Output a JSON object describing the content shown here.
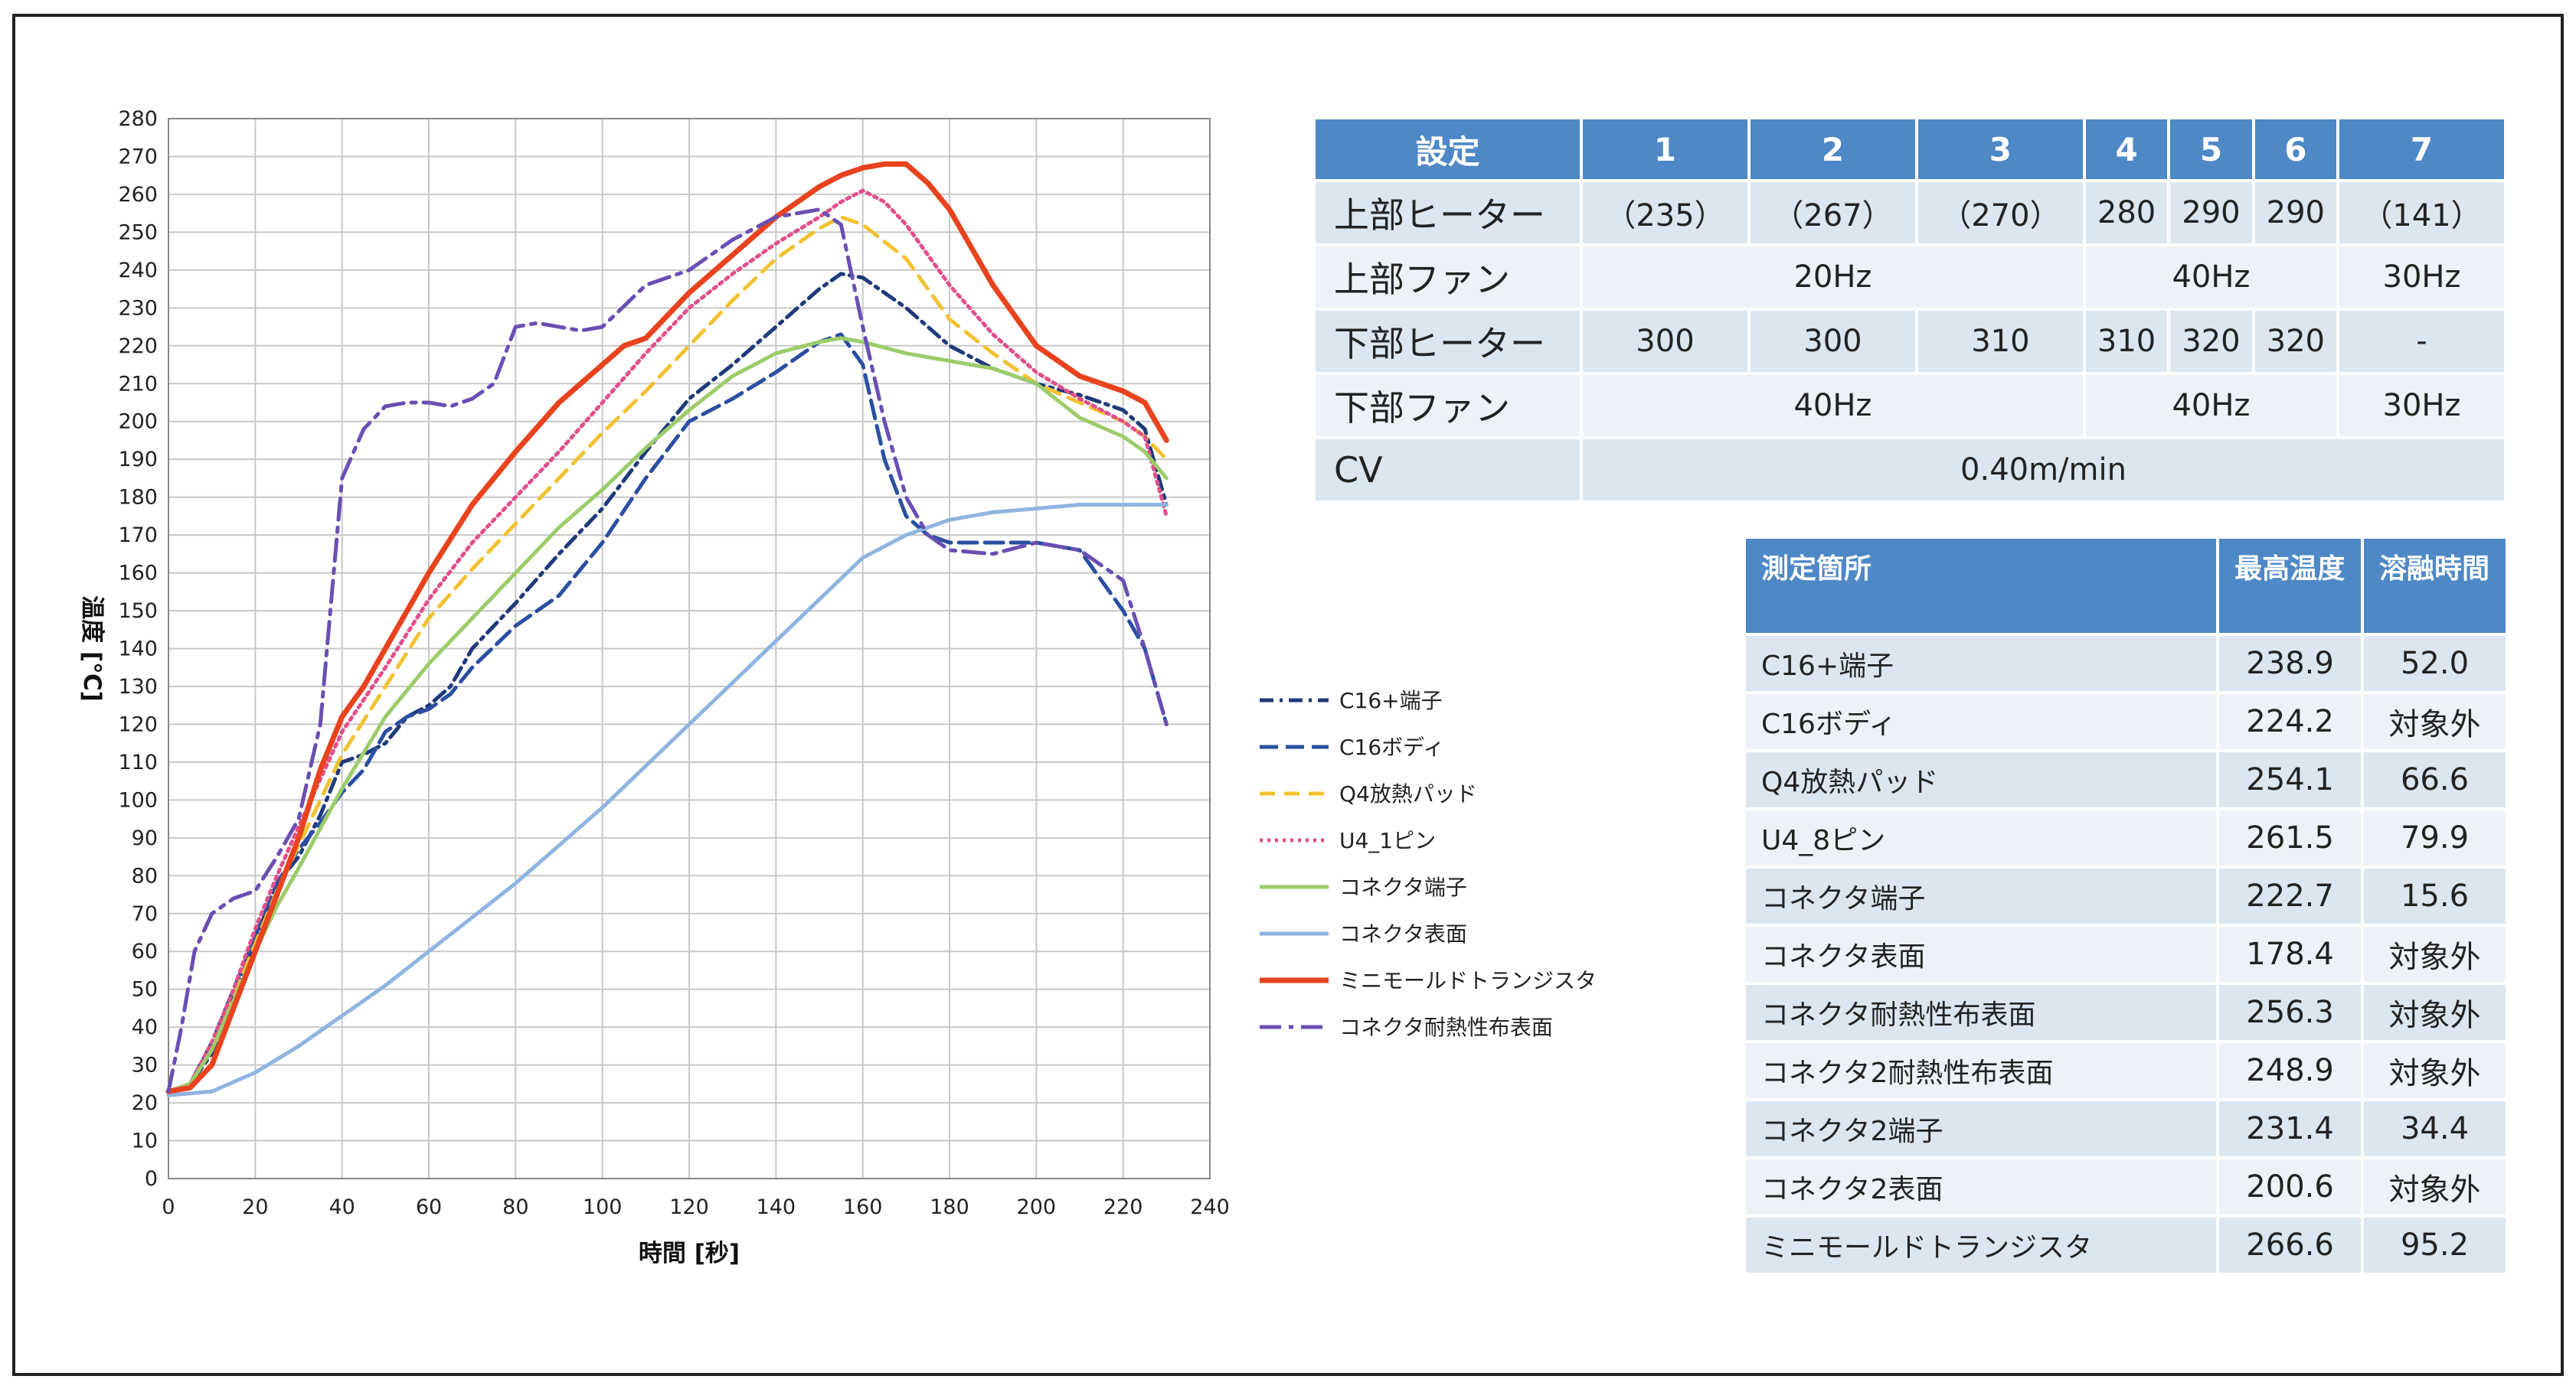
{
  "chart_data": {
    "type": "line",
    "xlabel": "時間 [秒]",
    "ylabel": "温度 [℃]",
    "xlim": [
      0,
      240
    ],
    "ylim": [
      0,
      280
    ],
    "xticks": [
      0,
      20,
      40,
      60,
      80,
      100,
      120,
      140,
      160,
      180,
      200,
      220,
      240
    ],
    "yticks": [
      0,
      10,
      20,
      30,
      40,
      50,
      60,
      70,
      80,
      90,
      100,
      110,
      120,
      130,
      140,
      150,
      160,
      170,
      180,
      190,
      200,
      210,
      220,
      230,
      240,
      250,
      260,
      270,
      280
    ],
    "grid": true,
    "legend_position": "right",
    "series": [
      {
        "name": "C16+端子",
        "color": "#1f3a7a",
        "dash": "18,8,4,8",
        "x": [
          0,
          5,
          10,
          15,
          20,
          25,
          30,
          35,
          40,
          45,
          50,
          55,
          60,
          65,
          70,
          80,
          90,
          100,
          110,
          120,
          130,
          140,
          150,
          155,
          160,
          170,
          180,
          190,
          200,
          210,
          220,
          225,
          230
        ],
        "y": [
          23,
          25,
          33,
          48,
          63,
          78,
          85,
          96,
          110,
          112,
          115,
          122,
          125,
          130,
          140,
          152,
          165,
          177,
          192,
          206,
          215,
          225,
          235,
          239,
          238,
          230,
          220,
          214,
          210,
          207,
          203,
          198,
          178
        ]
      },
      {
        "name": "C16ボディ",
        "color": "#2a4fa0",
        "dash": "24,10",
        "x": [
          0,
          5,
          10,
          15,
          20,
          25,
          30,
          35,
          40,
          45,
          50,
          55,
          60,
          65,
          70,
          80,
          90,
          100,
          110,
          120,
          130,
          140,
          150,
          155,
          160,
          165,
          170,
          175,
          180,
          190,
          200,
          210,
          220,
          225,
          230
        ],
        "y": [
          23,
          25,
          36,
          50,
          64,
          78,
          87,
          94,
          102,
          108,
          118,
          122,
          124,
          128,
          135,
          146,
          154,
          168,
          185,
          200,
          206,
          213,
          221,
          223,
          215,
          190,
          175,
          170,
          168,
          168,
          168,
          166,
          150,
          140,
          120
        ]
      },
      {
        "name": "Q4放熱パッド",
        "color": "#f2c232",
        "dash": "20,12",
        "x": [
          0,
          5,
          10,
          15,
          20,
          25,
          30,
          40,
          50,
          60,
          70,
          80,
          90,
          100,
          110,
          120,
          130,
          140,
          150,
          155,
          160,
          170,
          180,
          190,
          200,
          210,
          220,
          225,
          230
        ],
        "y": [
          23,
          25,
          34,
          48,
          62,
          76,
          88,
          112,
          130,
          148,
          161,
          173,
          185,
          197,
          208,
          220,
          232,
          243,
          251,
          254,
          252,
          243,
          227,
          218,
          210,
          205,
          200,
          196,
          190
        ]
      },
      {
        "name": "U4_1ピン",
        "color": "#e0508c",
        "dash": "4,6",
        "x": [
          0,
          5,
          10,
          15,
          20,
          25,
          30,
          40,
          50,
          60,
          70,
          80,
          90,
          100,
          110,
          120,
          130,
          140,
          150,
          155,
          160,
          165,
          170,
          180,
          190,
          200,
          210,
          220,
          225,
          230
        ],
        "y": [
          23,
          25,
          36,
          50,
          66,
          80,
          93,
          118,
          135,
          153,
          168,
          180,
          192,
          205,
          218,
          230,
          239,
          247,
          254,
          258,
          261,
          258,
          252,
          236,
          223,
          213,
          206,
          200,
          196,
          175
        ]
      },
      {
        "name": "コネクタ端子",
        "color": "#9ccc6a",
        "dash": "",
        "x": [
          0,
          5,
          10,
          15,
          20,
          25,
          30,
          40,
          50,
          60,
          70,
          80,
          90,
          100,
          110,
          120,
          130,
          140,
          150,
          155,
          160,
          170,
          180,
          190,
          200,
          210,
          220,
          225,
          230
        ],
        "y": [
          23,
          25,
          34,
          47,
          60,
          72,
          82,
          103,
          122,
          136,
          148,
          160,
          172,
          182,
          193,
          203,
          212,
          218,
          221,
          222,
          221,
          218,
          216,
          214,
          210,
          201,
          196,
          192,
          185
        ]
      },
      {
        "name": "コネクタ表面",
        "color": "#8fb4e0",
        "dash": "",
        "x": [
          0,
          10,
          20,
          30,
          40,
          50,
          60,
          70,
          80,
          90,
          100,
          110,
          120,
          130,
          140,
          150,
          160,
          170,
          180,
          190,
          200,
          210,
          220,
          230
        ],
        "y": [
          22,
          23,
          28,
          35,
          43,
          51,
          60,
          69,
          78,
          88,
          98,
          109,
          120,
          131,
          142,
          153,
          164,
          170,
          174,
          176,
          177,
          178,
          178,
          178
        ]
      },
      {
        "name": "ミニモールドトランジスタ",
        "color": "#e8431e",
        "dash": "",
        "x": [
          0,
          5,
          10,
          15,
          20,
          25,
          30,
          35,
          40,
          45,
          50,
          60,
          70,
          80,
          90,
          100,
          105,
          110,
          120,
          130,
          140,
          150,
          155,
          160,
          165,
          170,
          175,
          180,
          190,
          200,
          210,
          220,
          225,
          230
        ],
        "y": [
          23,
          24,
          30,
          45,
          60,
          75,
          90,
          108,
          122,
          130,
          140,
          160,
          178,
          192,
          205,
          215,
          220,
          222,
          234,
          244,
          254,
          262,
          265,
          267,
          268,
          268,
          263,
          256,
          236,
          220,
          212,
          208,
          205,
          195
        ]
      },
      {
        "name": "コネクタ耐熱性布表面",
        "color": "#6a4fb3",
        "dash": "28,10,6,10",
        "x": [
          0,
          3,
          6,
          10,
          15,
          20,
          25,
          30,
          35,
          40,
          45,
          50,
          55,
          60,
          65,
          70,
          75,
          80,
          85,
          90,
          95,
          100,
          110,
          120,
          130,
          140,
          150,
          155,
          160,
          165,
          170,
          175,
          180,
          190,
          200,
          210,
          220,
          225,
          230
        ],
        "y": [
          23,
          40,
          60,
          70,
          74,
          76,
          85,
          95,
          120,
          185,
          198,
          204,
          205,
          205,
          204,
          206,
          210,
          225,
          226,
          225,
          224,
          225,
          236,
          240,
          248,
          254,
          256,
          252,
          225,
          200,
          180,
          170,
          166,
          165,
          168,
          166,
          158,
          140,
          120
        ]
      }
    ]
  },
  "settings_table": {
    "header": [
      "設定",
      "1",
      "2",
      "3",
      "4",
      "5",
      "6",
      "7"
    ],
    "rows": [
      {
        "label": "上部ヒーター",
        "cells": [
          "（235）",
          "（267）",
          "（270）",
          "280",
          "290",
          "290",
          "（141）"
        ]
      },
      {
        "label": "上部ファン",
        "group1": "20Hz",
        "group2": "40Hz",
        "last": "30Hz"
      },
      {
        "label": "下部ヒーター",
        "cells": [
          "300",
          "300",
          "310",
          "310",
          "320",
          "320",
          "-"
        ]
      },
      {
        "label": "下部ファン",
        "group1": "40Hz",
        "group2": "40Hz",
        "last": "30Hz"
      },
      {
        "label": "CV",
        "span": "0.40m/min"
      }
    ]
  },
  "measure_table": {
    "header": [
      "測定箇所",
      "最高温度",
      "溶融時間"
    ],
    "rows": [
      [
        "C16+端子",
        "238.9",
        "52.0"
      ],
      [
        "C16ボディ",
        "224.2",
        "対象外"
      ],
      [
        "Q4放熱パッド",
        "254.1",
        "66.6"
      ],
      [
        "U4_8ピン",
        "261.5",
        "79.9"
      ],
      [
        "コネクタ端子",
        "222.7",
        "15.6"
      ],
      [
        "コネクタ表面",
        "178.4",
        "対象外"
      ],
      [
        "コネクタ耐熱性布表面",
        "256.3",
        "対象外"
      ],
      [
        "コネクタ2耐熱性布表面",
        "248.9",
        "対象外"
      ],
      [
        "コネクタ2端子",
        "231.4",
        "34.4"
      ],
      [
        "コネクタ2表面",
        "200.6",
        "対象外"
      ],
      [
        "ミニモールドトランジスタ",
        "266.6",
        "95.2"
      ]
    ]
  }
}
